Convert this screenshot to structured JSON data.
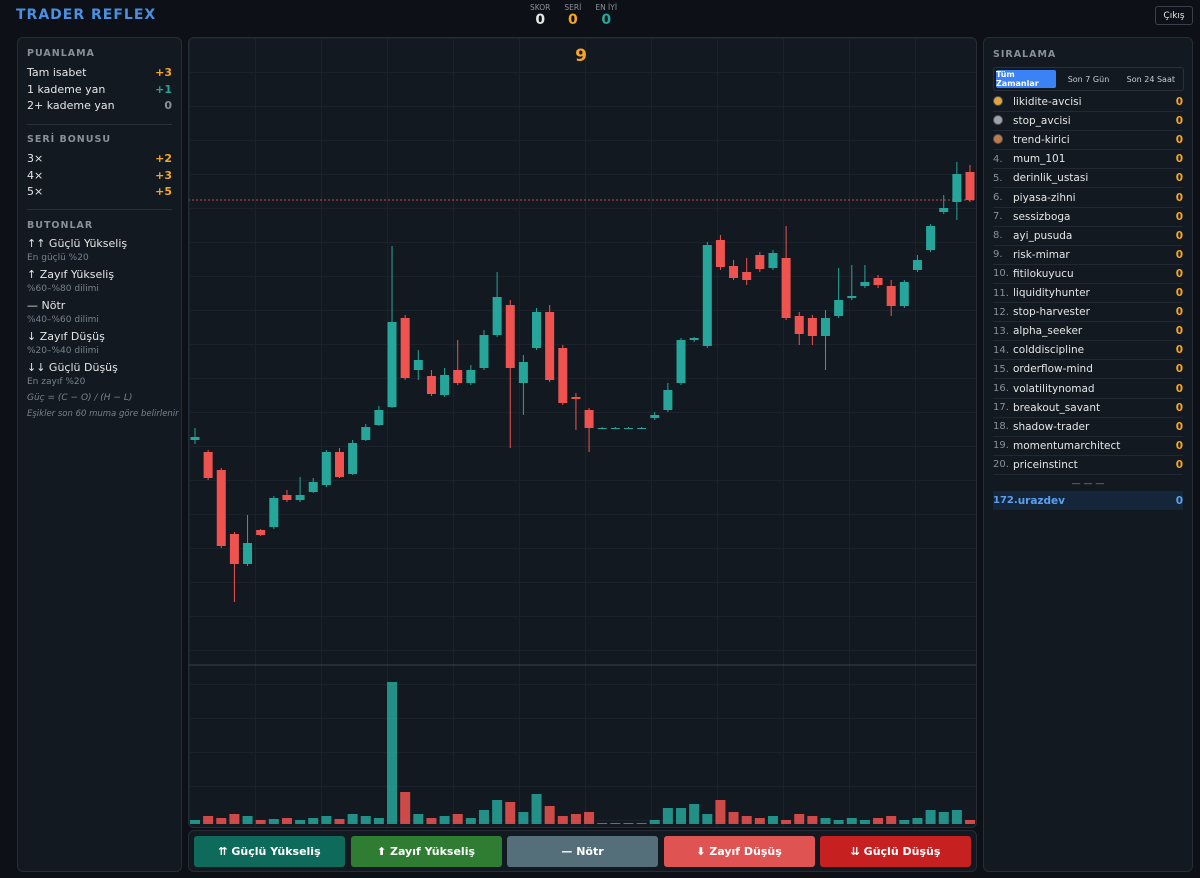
{
  "header": {
    "title": "TRADER REFLEX",
    "stats": [
      {
        "label": "SKOR",
        "value": 0,
        "color": "#e6e6e6"
      },
      {
        "label": "SERİ",
        "value": 0,
        "color": "#f5a623"
      },
      {
        "label": "EN İYİ",
        "value": 0,
        "color": "#26a69a"
      }
    ],
    "exit": "Çıkış"
  },
  "scoring": {
    "title": "PUANLAMA",
    "rows": [
      {
        "label": "Tam isabet",
        "value": "+3",
        "color": "#f5a623"
      },
      {
        "label": "1 kademe yan",
        "value": "+1",
        "color": "#26a69a"
      },
      {
        "label": "2+ kademe yan",
        "value": "0",
        "color": "#8a9099"
      }
    ]
  },
  "streak": {
    "title": "SERİ BONUSU",
    "rows": [
      {
        "label": "3×",
        "value": "+2",
        "color": "#f5a623"
      },
      {
        "label": "4×",
        "value": "+3",
        "color": "#f5a623"
      },
      {
        "label": "5×",
        "value": "+5",
        "color": "#f5a623"
      }
    ]
  },
  "buttons_info": {
    "title": "BUTONLAR",
    "items": [
      {
        "label": "↑↑ Güçlü Yükseliş",
        "desc": "En güçlü %20"
      },
      {
        "label": "↑ Zayıf Yükseliş",
        "desc": "%60–%80 dilimi"
      },
      {
        "label": "— Nötr",
        "desc": "%40–%60 dilimi"
      },
      {
        "label": "↓ Zayıf Düşüş",
        "desc": "%20–%40 dilimi"
      },
      {
        "label": "↓↓ Güçlü Düşüş",
        "desc": "En zayıf %20"
      }
    ],
    "formula": "Güç = (C − O) / (H − L)",
    "note": "Eşikler son 60 muma göre belirlenir"
  },
  "leaderboard": {
    "title": "SIRALAMA",
    "tabs": [
      "Tüm Zamanlar",
      "Son 7 Gün",
      "Son 24 Saat"
    ],
    "entries": [
      {
        "medal": "#e0a63a",
        "name": "likidite-avcisi",
        "score": 0
      },
      {
        "medal": "#9aa4b0",
        "name": "stop_avcisi",
        "score": 0
      },
      {
        "medal": "#c07a4a",
        "name": "trend-kirici",
        "score": 0
      },
      {
        "rank": "4.",
        "name": "mum_101",
        "score": 0
      },
      {
        "rank": "5.",
        "name": "derinlik_ustasi",
        "score": 0
      },
      {
        "rank": "6.",
        "name": "piyasa-zihni",
        "score": 0
      },
      {
        "rank": "7.",
        "name": "sessizboga",
        "score": 0
      },
      {
        "rank": "8.",
        "name": "ayi_pusuda",
        "score": 0
      },
      {
        "rank": "9.",
        "name": "risk-mimar",
        "score": 0
      },
      {
        "rank": "10.",
        "name": "fitilokuyucu",
        "score": 0
      },
      {
        "rank": "11.",
        "name": "liquidityhunter",
        "score": 0
      },
      {
        "rank": "12.",
        "name": "stop-harvester",
        "score": 0
      },
      {
        "rank": "13.",
        "name": "alpha_seeker",
        "score": 0
      },
      {
        "rank": "14.",
        "name": "colddiscipline",
        "score": 0
      },
      {
        "rank": "15.",
        "name": "orderflow-mind",
        "score": 0
      },
      {
        "rank": "16.",
        "name": "volatilitynomad",
        "score": 0
      },
      {
        "rank": "17.",
        "name": "breakout_savant",
        "score": 0
      },
      {
        "rank": "18.",
        "name": "shadow-trader",
        "score": 0
      },
      {
        "rank": "19.",
        "name": "momentumarchitect",
        "score": 0
      },
      {
        "rank": "20.",
        "name": "priceinstinct",
        "score": 0
      }
    ],
    "separator": "— — —",
    "me": {
      "rank": "172.",
      "name": "urazdev",
      "score": 0
    }
  },
  "actions": [
    {
      "label": "⇈ Güçlü Yükseliş",
      "color": "#0e6b5b"
    },
    {
      "label": "⬆ Zayıf Yükseliş",
      "color": "#2e7d32"
    },
    {
      "label": "— Nötr",
      "color": "#546e7a"
    },
    {
      "label": "⬇ Zayıf Düşüş",
      "color": "#e05353"
    },
    {
      "label": "⇊ Güçlü Düşüş",
      "color": "#c62020"
    }
  ],
  "chart_data": {
    "type": "candlestick",
    "countdown": 9,
    "up_color": "#26a69a",
    "down_color": "#ef5350",
    "ylim": [
      35,
      660
    ],
    "volume_ylim": [
      0,
      154
    ],
    "price_line": 500,
    "open": [
      260,
      248,
      230,
      166,
      136,
      170,
      173,
      205,
      200,
      208,
      215,
      248,
      226,
      260,
      275,
      293,
      382,
      330,
      324,
      305,
      330,
      317,
      332,
      365,
      395,
      317,
      352,
      388,
      352,
      303,
      290,
      272,
      272,
      272,
      272,
      282,
      290,
      317,
      360,
      354,
      460,
      434,
      428,
      445,
      432,
      442,
      384,
      382,
      364,
      384,
      402,
      414,
      422,
      414,
      394,
      430,
      450,
      488,
      498,
      528
    ],
    "high": [
      272,
      250,
      232,
      168,
      185,
      171,
      204,
      210,
      223,
      222,
      250,
      252,
      260,
      276,
      294,
      454,
      385,
      350,
      330,
      332,
      360,
      335,
      370,
      428,
      400,
      345,
      392,
      395,
      355,
      307,
      292,
      273,
      273,
      273,
      273,
      288,
      317,
      362,
      363,
      458,
      465,
      440,
      442,
      448,
      450,
      474,
      388,
      385,
      390,
      432,
      435,
      435,
      425,
      420,
      420,
      445,
      476,
      505,
      538,
      535
    ],
    "low": [
      256,
      220,
      152,
      98,
      134,
      164,
      171,
      198,
      198,
      207,
      213,
      222,
      225,
      259,
      274,
      292,
      320,
      320,
      304,
      303,
      315,
      315,
      330,
      363,
      252,
      285,
      350,
      318,
      295,
      270,
      248,
      271,
      271,
      271,
      271,
      280,
      288,
      315,
      358,
      352,
      430,
      420,
      415,
      428,
      430,
      380,
      355,
      355,
      330,
      382,
      400,
      412,
      412,
      384,
      392,
      428,
      448,
      486,
      480,
      498
    ],
    "close": [
      263,
      222,
      154,
      136,
      157,
      165,
      202,
      200,
      205,
      218,
      248,
      223,
      257,
      273,
      290,
      378,
      322,
      340,
      306,
      325,
      317,
      330,
      365,
      403,
      332,
      338,
      388,
      320,
      297,
      301,
      272,
      272,
      272,
      272,
      272,
      285,
      310,
      360,
      362,
      455,
      433,
      422,
      420,
      431,
      447,
      382,
      366,
      364,
      382,
      400,
      404,
      418,
      415,
      394,
      418,
      440,
      474,
      492,
      526,
      500
    ],
    "volume": [
      4,
      8,
      6,
      10,
      8,
      4,
      5,
      6,
      4,
      6,
      8,
      5,
      10,
      8,
      6,
      142,
      32,
      10,
      6,
      8,
      10,
      6,
      14,
      24,
      22,
      12,
      30,
      18,
      8,
      10,
      12,
      1,
      1,
      1,
      1,
      4,
      16,
      16,
      20,
      10,
      24,
      12,
      8,
      6,
      8,
      4,
      10,
      8,
      6,
      4,
      6,
      4,
      6,
      8,
      4,
      6,
      14,
      12,
      14,
      4
    ]
  }
}
